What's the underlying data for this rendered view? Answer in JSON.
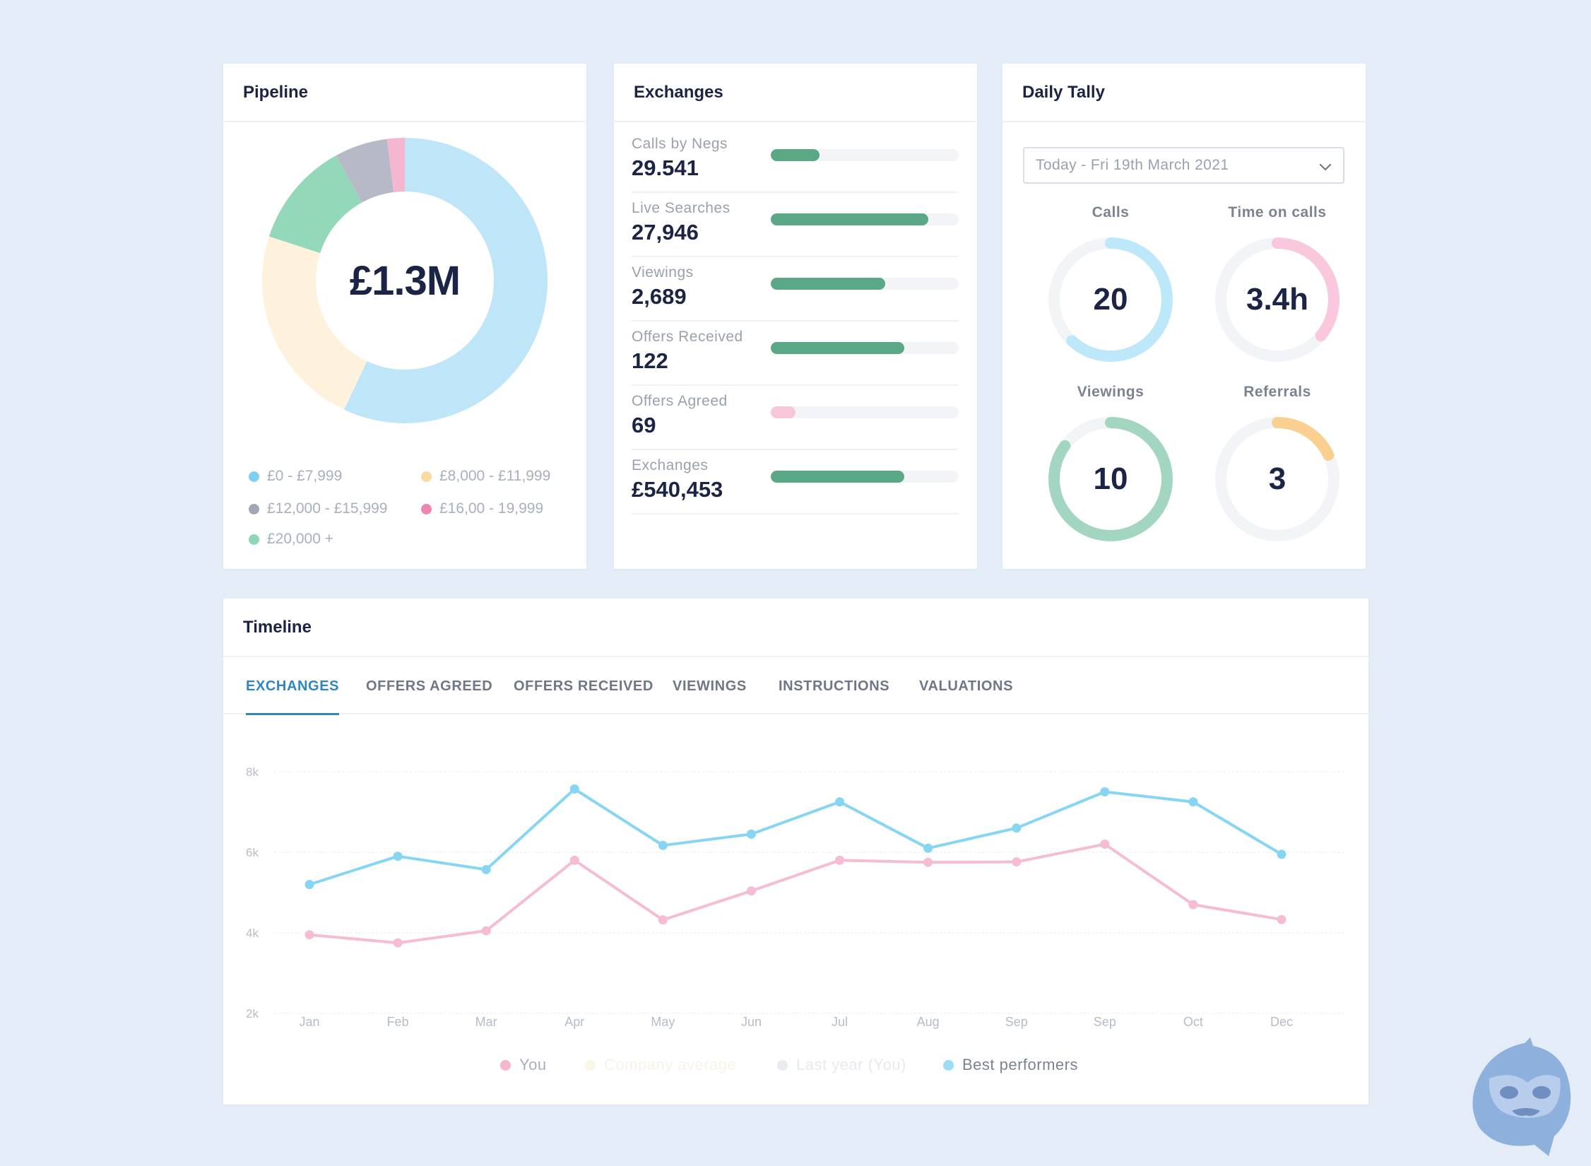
{
  "pipeline": {
    "title": "Pipeline",
    "total": "£1.3M",
    "segments": [
      {
        "label": "£0 - £7,999",
        "value": 57,
        "color": "#bfe6f8"
      },
      {
        "label": "£8,000 - £11,999",
        "value": 23,
        "color": "#fff2dc"
      },
      {
        "label": "£20,000 +",
        "value": 12,
        "color": "#92d8b9"
      },
      {
        "label": "£12,000 - £15,999",
        "value": 6,
        "color": "#b7b9c6"
      },
      {
        "label": "£16,00 - 19,999",
        "value": 2,
        "color": "#f5b6d0"
      }
    ],
    "legend": [
      {
        "label": "£0 - £7,999",
        "color": "#7fd0f0"
      },
      {
        "label": "£8,000 - £11,999",
        "color": "#fbd9a3"
      },
      {
        "label": "£12,000 - £15,999",
        "color": "#a3a6b3"
      },
      {
        "label": "£16,00 - 19,999",
        "color": "#ee86b3"
      },
      {
        "label": "£20,000 +",
        "color": "#8fd6b6"
      }
    ]
  },
  "exchanges": {
    "title": "Exchanges",
    "rows": [
      {
        "label": "Calls by Negs",
        "value": "29.541",
        "fill": 0.26,
        "color": "#5aa886"
      },
      {
        "label": "Live Searches",
        "value": "27,946",
        "fill": 0.84,
        "color": "#5aa886"
      },
      {
        "label": "Viewings",
        "value": "2,689",
        "fill": 0.61,
        "color": "#5aa886"
      },
      {
        "label": "Offers Received",
        "value": "122",
        "fill": 0.71,
        "color": "#5aa886"
      },
      {
        "label": "Offers Agreed",
        "value": "69",
        "fill": 0.13,
        "color": "#f7c6d9"
      },
      {
        "label": "Exchanges",
        "value": "£540,453",
        "fill": 0.71,
        "color": "#5aa886"
      }
    ]
  },
  "tally": {
    "title": "Daily Tally",
    "date_select": "Today - Fri 19th March 2021",
    "gauges": [
      {
        "title": "Calls",
        "value": "20",
        "color": "#bde8fa",
        "start": 0.0,
        "fraction": 0.62
      },
      {
        "title": "Time on calls",
        "value": "3.4h",
        "color": "#f9c8dc",
        "start": 0.0,
        "fraction": 0.36
      },
      {
        "title": "Viewings",
        "value": "10",
        "color": "#a3d6c1",
        "start": 0.0,
        "fraction": 0.85
      },
      {
        "title": "Referrals",
        "value": "3",
        "color": "#f9d08f",
        "start": 0.0,
        "fraction": 0.18
      }
    ]
  },
  "timeline": {
    "title": "Timeline",
    "tabs": [
      "EXCHANGES",
      "OFFERS AGREED",
      "OFFERS RECEIVED",
      "VIEWINGS",
      "INSTRUCTIONS",
      "VALUATIONS"
    ],
    "active_tab": 0,
    "legend": [
      {
        "label": "You",
        "color": "#f5b6d0",
        "text_color": "#a8afbd"
      },
      {
        "label": "Company average",
        "color": "#fbf6e6",
        "text_color": "#f7f3e6"
      },
      {
        "label": "Last year (You)",
        "color": "#e8ebef",
        "text_color": "#e6e9ee"
      },
      {
        "label": "Best performers",
        "color": "#9ddcf6",
        "text_color": "#7b8393"
      }
    ]
  },
  "chart_data": {
    "type": "line",
    "categories": [
      "Jan",
      "Feb",
      "Mar",
      "Apr",
      "May",
      "Jun",
      "Jul",
      "Aug",
      "Sep",
      "Sep",
      "Oct",
      "Dec"
    ],
    "yticks": [
      "2k",
      "4k",
      "6k",
      "8k"
    ],
    "ylim": [
      2000,
      8000
    ],
    "grid": true,
    "series": [
      {
        "name": "Best performers",
        "color": "#86d6f3",
        "values": [
          5200,
          5900,
          5570,
          7570,
          6170,
          6450,
          7250,
          6100,
          6600,
          7500,
          7250,
          5950
        ]
      },
      {
        "name": "You",
        "color": "#f5bcd3",
        "values": [
          3950,
          3750,
          4050,
          5800,
          4320,
          5040,
          5800,
          5750,
          5760,
          6200,
          4700,
          4330
        ]
      }
    ]
  }
}
